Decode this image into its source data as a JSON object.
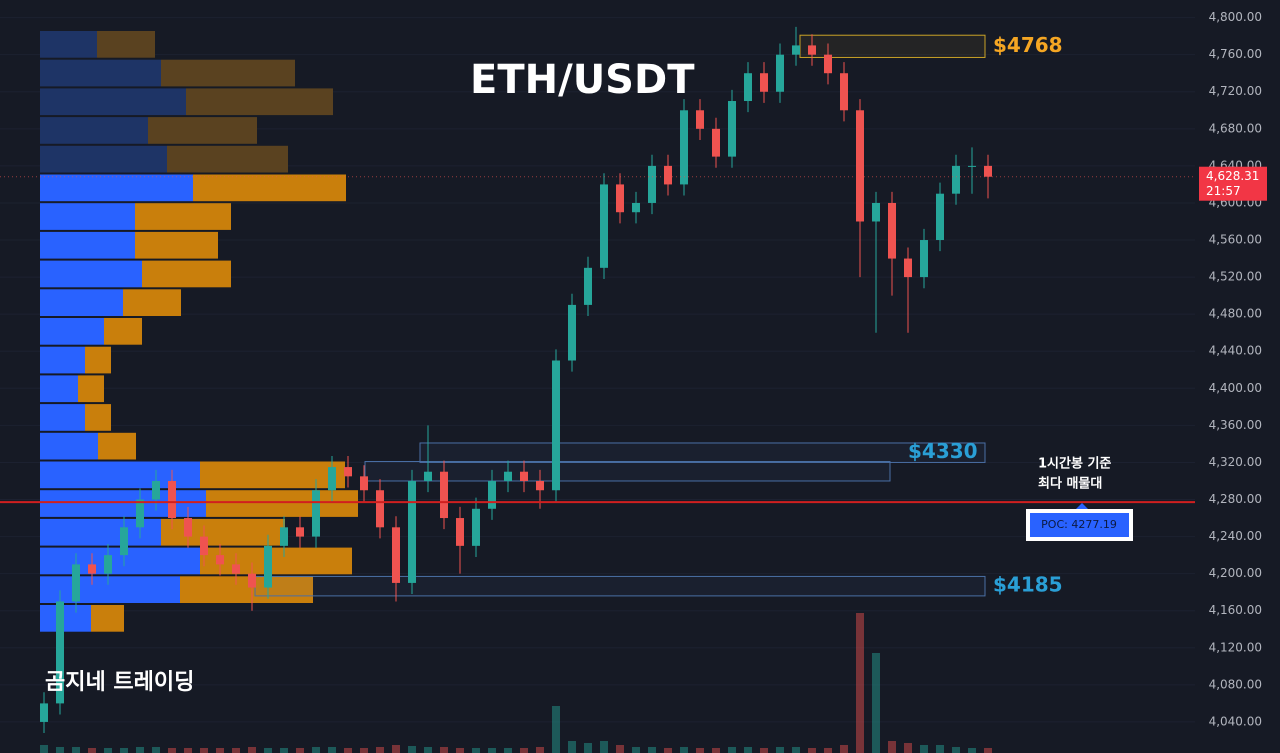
{
  "chart_data": {
    "type": "candlestick",
    "title": "ETH/USDT",
    "watermark": "곰지네 트레이딩",
    "up_color": "#26a69a",
    "down_color": "#ef5350",
    "ylim": [
      4000,
      4819
    ],
    "grid": true,
    "yticks": [
      {
        "value": 4040,
        "label": "4,040.00"
      },
      {
        "value": 4080,
        "label": "4,080.00"
      },
      {
        "value": 4120,
        "label": "4,120.00"
      },
      {
        "value": 4160,
        "label": "4,160.00"
      },
      {
        "value": 4200,
        "label": "4,200.00"
      },
      {
        "value": 4240,
        "label": "4,240.00"
      },
      {
        "value": 4280,
        "label": "4,280.00"
      },
      {
        "value": 4320,
        "label": "4,320.00"
      },
      {
        "value": 4360,
        "label": "4,360.00"
      },
      {
        "value": 4400,
        "label": "4,400.00"
      },
      {
        "value": 4440,
        "label": "4,440.00"
      },
      {
        "value": 4480,
        "label": "4,480.00"
      },
      {
        "value": 4520,
        "label": "4,520.00"
      },
      {
        "value": 4560,
        "label": "4,560.00"
      },
      {
        "value": 4600,
        "label": "4,600.00"
      },
      {
        "value": 4640,
        "label": "4,640.00"
      },
      {
        "value": 4680,
        "label": "4,680.00"
      },
      {
        "value": 4720,
        "label": "4,720.00"
      },
      {
        "value": 4760,
        "label": "4,760.00"
      },
      {
        "value": 4800,
        "label": "4,800.00"
      }
    ],
    "open": [
      4040,
      4060,
      4170,
      4210,
      4200,
      4220,
      4250,
      4280,
      4300,
      4260,
      4240,
      4220,
      4210,
      4200,
      4185,
      4230,
      4250,
      4240,
      4290,
      4315,
      4305,
      4290,
      4250,
      4190,
      4300,
      4310,
      4260,
      4230,
      4270,
      4300,
      4310,
      4300,
      4290,
      4430,
      4490,
      4530,
      4620,
      4590,
      4600,
      4640,
      4620,
      4700,
      4680,
      4650,
      4710,
      4740,
      4720,
      4760,
      4770,
      4760,
      4740,
      4700,
      4580,
      4600,
      4540,
      4520,
      4560,
      4610,
      4640,
      4640
    ],
    "high": [
      4072,
      4182,
      4222,
      4222,
      4232,
      4262,
      4292,
      4312,
      4312,
      4272,
      4252,
      4232,
      4222,
      4212,
      4242,
      4262,
      4262,
      4302,
      4327,
      4327,
      4317,
      4302,
      4262,
      4312,
      4360,
      4322,
      4272,
      4282,
      4312,
      4322,
      4322,
      4312,
      4442,
      4502,
      4542,
      4632,
      4632,
      4612,
      4652,
      4652,
      4712,
      4712,
      4692,
      4722,
      4752,
      4752,
      4772,
      4790,
      4782,
      4772,
      4752,
      4712,
      4612,
      4612,
      4552,
      4572,
      4622,
      4652,
      4660,
      4652
    ],
    "low": [
      4028,
      4048,
      4158,
      4188,
      4188,
      4208,
      4238,
      4268,
      4248,
      4228,
      4208,
      4198,
      4188,
      4160,
      4173,
      4218,
      4228,
      4228,
      4278,
      4293,
      4278,
      4238,
      4170,
      4178,
      4288,
      4248,
      4200,
      4218,
      4258,
      4288,
      4288,
      4270,
      4278,
      4418,
      4478,
      4518,
      4578,
      4578,
      4588,
      4608,
      4608,
      4668,
      4638,
      4638,
      4698,
      4708,
      4708,
      4748,
      4748,
      4728,
      4688,
      4520,
      4460,
      4500,
      4460,
      4508,
      4548,
      4598,
      4610,
      4605
    ],
    "close": [
      4060,
      4170,
      4210,
      4200,
      4220,
      4250,
      4280,
      4300,
      4260,
      4240,
      4220,
      4210,
      4200,
      4185,
      4230,
      4250,
      4240,
      4290,
      4315,
      4305,
      4290,
      4250,
      4190,
      4300,
      4310,
      4260,
      4230,
      4270,
      4300,
      4310,
      4300,
      4290,
      4430,
      4490,
      4530,
      4620,
      4590,
      4600,
      4640,
      4620,
      4700,
      4680,
      4650,
      4710,
      4740,
      4720,
      4760,
      4770,
      4760,
      4740,
      4700,
      4580,
      4600,
      4540,
      4520,
      4560,
      4610,
      4640,
      4640,
      4628.31
    ],
    "volume": [
      8,
      6,
      6,
      5,
      5,
      5,
      6,
      6,
      5,
      5,
      5,
      5,
      5,
      6,
      5,
      5,
      5,
      6,
      6,
      5,
      5,
      6,
      8,
      7,
      6,
      6,
      5,
      5,
      5,
      5,
      5,
      6,
      47,
      12,
      10,
      12,
      8,
      6,
      6,
      5,
      6,
      5,
      5,
      6,
      6,
      5,
      6,
      6,
      5,
      5,
      8,
      140,
      100,
      12,
      10,
      8,
      8,
      6,
      5,
      5
    ],
    "last_price_label": "4,628.31",
    "countdown": "21:57",
    "poc": 4277.19,
    "poc_label": "POC: 4277.19",
    "poc_note": [
      "1시간봉 기준",
      "최다 매물대"
    ],
    "zones": [
      {
        "label": "$4768",
        "low": 4757,
        "high": 4781,
        "color": "#c9a227",
        "label_color": "#f5a623"
      },
      {
        "label": "$4330",
        "low": 4320,
        "high": 4341,
        "color": "#4a6fa5",
        "label_color": "#2a9fd6"
      },
      {
        "low": 4300,
        "high": 4321,
        "color": "#4a6fa5"
      },
      {
        "label": "$4185",
        "low": 4176,
        "high": 4197,
        "color": "#4a6fa5",
        "label_color": "#2a9fd6"
      }
    ],
    "volume_profile": {
      "buy": [
        57,
        121,
        146,
        108,
        127,
        153,
        95,
        95,
        102,
        83,
        64,
        45,
        38,
        45,
        58,
        160,
        166,
        121,
        160,
        140,
        51
      ],
      "sell": [
        58,
        134,
        147,
        109,
        121,
        153,
        96,
        83,
        89,
        58,
        38,
        26,
        26,
        26,
        38,
        145,
        152,
        124,
        152,
        133,
        33
      ],
      "dim": [
        true,
        true,
        true,
        true,
        true,
        false,
        false,
        false,
        false,
        false,
        false,
        false,
        false,
        false,
        false,
        false,
        false,
        false,
        false,
        false,
        false
      ],
      "buy_color": "#2962ff",
      "sell_color": "#c97f0c",
      "buy_dim_color": "#1e3466",
      "sell_dim_color": "#5a4220"
    }
  }
}
